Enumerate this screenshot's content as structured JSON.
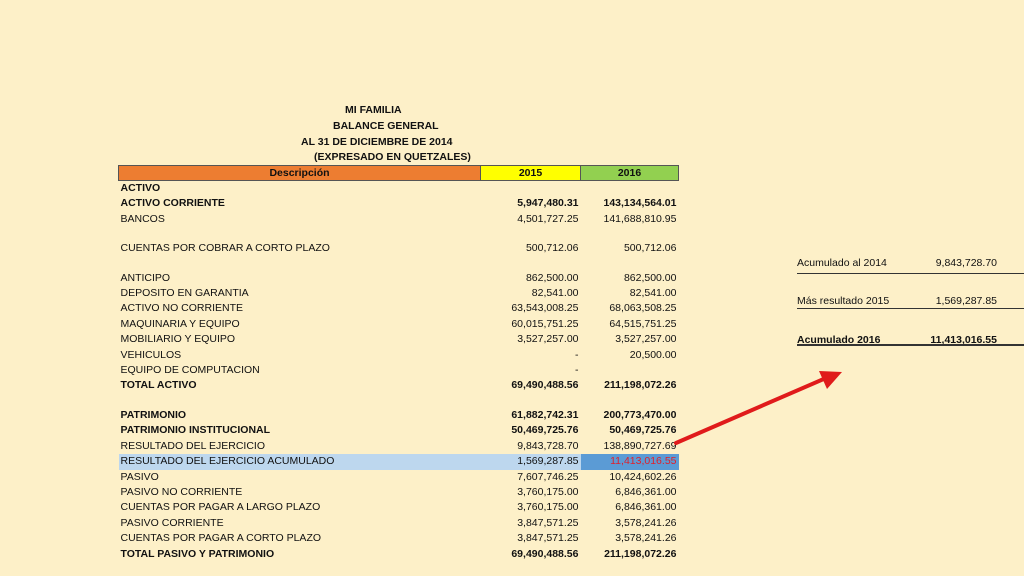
{
  "report": {
    "entity": "MI FAMILIA",
    "statement": "BALANCE GENERAL",
    "date_line": "AL 31 DE DICIEMBRE DE 2014",
    "currency_note": "(EXPRESADO EN QUETZALES)"
  },
  "table": {
    "columns": [
      "Descripción",
      "2015",
      "2016"
    ],
    "rows": [
      {
        "desc": "ACTIVO",
        "y2015": "",
        "y2016": ""
      },
      {
        "desc": "ACTIVO CORRIENTE",
        "y2015": "5,947,480.31",
        "y2016": "143,134,564.01"
      },
      {
        "desc": "BANCOS",
        "y2015": "4,501,727.25",
        "y2016": "141,688,810.95"
      },
      {
        "desc": "",
        "y2015": "",
        "y2016": ""
      },
      {
        "desc": "CUENTAS POR COBRAR A CORTO PLAZO",
        "y2015": "500,712.06",
        "y2016": "500,712.06"
      },
      {
        "desc": "",
        "y2015": "",
        "y2016": ""
      },
      {
        "desc": "ANTICIPO",
        "y2015": "862,500.00",
        "y2016": "862,500.00"
      },
      {
        "desc": "DEPOSITO EN GARANTIA",
        "y2015": "82,541.00",
        "y2016": "82,541.00"
      },
      {
        "desc": "ACTIVO NO CORRIENTE",
        "y2015": "63,543,008.25",
        "y2016": "68,063,508.25"
      },
      {
        "desc": "MAQUINARIA Y EQUIPO",
        "y2015": "60,015,751.25",
        "y2016": "64,515,751.25"
      },
      {
        "desc": "MOBILIARIO Y EQUIPO",
        "y2015": "3,527,257.00",
        "y2016": "3,527,257.00"
      },
      {
        "desc": "VEHICULOS",
        "y2015": "-",
        "y2016": "20,500.00"
      },
      {
        "desc": "EQUIPO DE COMPUTACION",
        "y2015": "-",
        "y2016": ""
      },
      {
        "desc": "TOTAL ACTIVO",
        "y2015": "69,490,488.56",
        "y2016": "211,198,072.26"
      },
      {
        "desc": "",
        "y2015": "",
        "y2016": ""
      },
      {
        "desc": "PATRIMONIO",
        "y2015": "61,882,742.31",
        "y2016": "200,773,470.00"
      },
      {
        "desc": "PATRIMONIO INSTITUCIONAL",
        "y2015": "50,469,725.76",
        "y2016": "50,469,725.76"
      },
      {
        "desc": "RESULTADO DEL EJERCICIO",
        "y2015": "9,843,728.70",
        "y2016": "138,890,727.69"
      },
      {
        "desc": "RESULTADO DEL EJERCICIO ACUMULADO",
        "y2015": "1,569,287.85",
        "y2016": "11,413,016.55"
      },
      {
        "desc": "PASIVO",
        "y2015": "7,607,746.25",
        "y2016": "10,424,602.26"
      },
      {
        "desc": "PASIVO NO CORRIENTE",
        "y2015": "3,760,175.00",
        "y2016": "6,846,361.00"
      },
      {
        "desc": "CUENTAS POR PAGAR A LARGO PLAZO",
        "y2015": "3,760,175.00",
        "y2016": "6,846,361.00"
      },
      {
        "desc": "PASIVO CORRIENTE",
        "y2015": "3,847,571.25",
        "y2016": "3,578,241.26"
      },
      {
        "desc": "CUENTAS POR PAGAR  A CORTO PLAZO",
        "y2015": "3,847,571.25",
        "y2016": "3,578,241.26"
      },
      {
        "desc": "TOTAL PASIVO Y PATRIMONIO",
        "y2015": "69,490,488.56",
        "y2016": "211,198,072.26"
      }
    ]
  },
  "side_calc": {
    "acumulado_2014_label": "Acumulado al 2014",
    "acumulado_2014_value": "9,843,728.70",
    "resultado_2015_label": "Más resultado 2015",
    "resultado_2015_value": "1,569,287.85",
    "acumulado_2016_label": "Acumulado 2016",
    "acumulado_2016_value": "11,413,016.55"
  },
  "colors": {
    "background": "#fdf0c8",
    "header_desc": "#ed7d31",
    "header_2015": "#ffff00",
    "header_2016": "#92d050",
    "highlight_row": "#bdd7ee",
    "highlight_cell": "#5b9bd5",
    "highlight_text": "#e0202a",
    "arrow": "#e01b1b"
  }
}
